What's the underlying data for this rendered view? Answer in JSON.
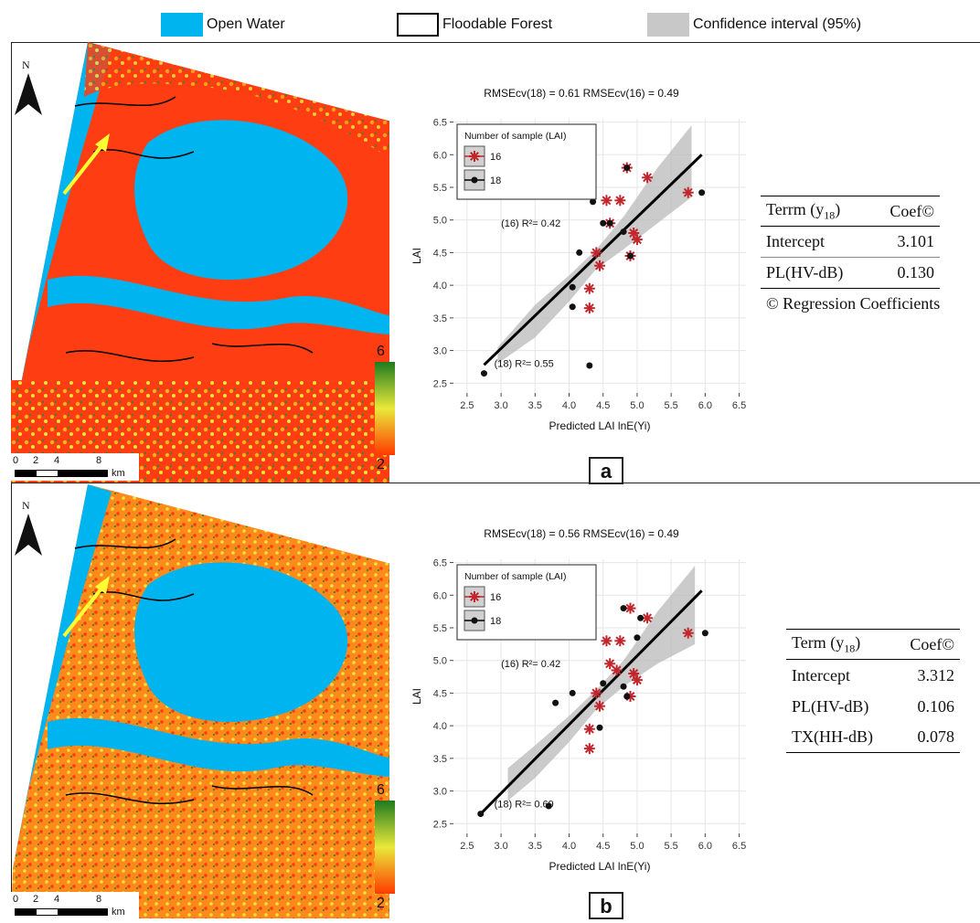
{
  "legend": {
    "open_water": {
      "label": "Open Water",
      "color": "#00b5ef"
    },
    "floodable_forest": {
      "label": "Floodable Forest"
    },
    "confidence": {
      "label": "Confidence  interval (95%)",
      "color": "#c8c8c8"
    }
  },
  "map_common": {
    "north_label": "N",
    "scale_labels": [
      "0",
      "2",
      "4",
      "8"
    ],
    "scale_unit": "km",
    "colorbar_max": "6",
    "colorbar_min": "2",
    "colorbar_colors": [
      "#1f7a1f",
      "#e9e93a",
      "#ff3a00"
    ]
  },
  "panels": [
    {
      "letter": "a",
      "table": {
        "headers": [
          "Terrm (y18)",
          "Coef©"
        ],
        "header_term": "Terrm (y",
        "header_sub": "18",
        "header_close": ")",
        "header_coef": "Coef©",
        "rows": [
          {
            "term": "Intercept",
            "coef": "3.101"
          },
          {
            "term": "PL(HV-dB)",
            "coef": "0.130"
          }
        ],
        "caption": "© Regression Coefficients"
      }
    },
    {
      "letter": "b",
      "table": {
        "headers": [
          "Term (y18)",
          "Coef©"
        ],
        "header_term": "Term (y",
        "header_sub": "18",
        "header_close": ")",
        "header_coef": "Coef©",
        "rows": [
          {
            "term": "Intercept",
            "coef": "3.312"
          },
          {
            "term": "PL(HV-dB)",
            "coef": "0.106"
          },
          {
            "term": "TX(HH-dB)",
            "coef": "0.078"
          }
        ],
        "caption": ""
      }
    }
  ],
  "chart_data": [
    {
      "type": "scatter",
      "title": "RMSEcv(18) = 0.61  RMSEcv(16) = 0.49",
      "xlabel": "Predicted LAI lnE(Yi)",
      "ylabel": "LAI",
      "xlim": [
        2.3,
        6.6
      ],
      "ylim": [
        2.35,
        6.55
      ],
      "xticks": [
        "2.5",
        "3.0",
        "3.5",
        "4.0",
        "4.5",
        "5.0",
        "5.5",
        "6.0",
        "6.5"
      ],
      "yticks": [
        "2.5",
        "3.0",
        "3.5",
        "4.0",
        "4.5",
        "5.0",
        "5.5",
        "6.0",
        "6.5"
      ],
      "grid": true,
      "legend_title": "Number of sample (LAI)",
      "legend_position": "top-left",
      "annotations": [
        "(16) R²= 0.42",
        "(18) R²= 0.55"
      ],
      "series": [
        {
          "name": "16",
          "marker": "asterisk",
          "color": "#c0272d",
          "points": [
            [
              4.85,
              5.8
            ],
            [
              5.15,
              5.65
            ],
            [
              4.55,
              5.3
            ],
            [
              4.75,
              5.3
            ],
            [
              5.75,
              5.42
            ],
            [
              4.6,
              4.95
            ],
            [
              4.95,
              4.8
            ],
            [
              4.4,
              4.5
            ],
            [
              4.45,
              4.3
            ],
            [
              4.3,
              3.95
            ],
            [
              4.3,
              3.65
            ],
            [
              4.9,
              4.45
            ],
            [
              5.0,
              4.7
            ]
          ]
        },
        {
          "name": "18",
          "marker": "dot",
          "color": "#111111",
          "points": [
            [
              2.75,
              2.65
            ],
            [
              4.3,
              2.77
            ],
            [
              4.05,
              3.67
            ],
            [
              4.05,
              3.97
            ],
            [
              4.15,
              4.5
            ],
            [
              4.9,
              4.45
            ],
            [
              4.5,
              4.95
            ],
            [
              4.6,
              4.95
            ],
            [
              4.8,
              4.82
            ],
            [
              4.35,
              5.28
            ],
            [
              4.85,
              5.8
            ],
            [
              5.95,
              5.42
            ]
          ]
        }
      ],
      "fit_line": [
        [
          2.75,
          2.78
        ],
        [
          5.95,
          6.0
        ]
      ],
      "ci_band": [
        [
          2.95,
          2.8,
          3.05
        ],
        [
          3.5,
          3.2,
          3.7
        ],
        [
          4.0,
          3.75,
          4.15
        ],
        [
          4.4,
          4.25,
          4.55
        ],
        [
          4.8,
          4.55,
          5.05
        ],
        [
          5.3,
          4.95,
          5.8
        ],
        [
          5.8,
          5.35,
          6.45
        ]
      ]
    },
    {
      "type": "scatter",
      "title": "RMSEcv(18) = 0.56  RMSEcv(16) = 0.49",
      "xlabel": "Predicted LAI lnE(Yi)",
      "ylabel": "LAI",
      "xlim": [
        2.3,
        6.6
      ],
      "ylim": [
        2.35,
        6.55
      ],
      "xticks": [
        "2.5",
        "3.0",
        "3.5",
        "4.0",
        "4.5",
        "5.0",
        "5.5",
        "6.0",
        "6.5"
      ],
      "yticks": [
        "2.5",
        "3.0",
        "3.5",
        "4.0",
        "4.5",
        "5.0",
        "5.5",
        "6.0",
        "6.5"
      ],
      "grid": true,
      "legend_title": "Number of sample (LAI)",
      "legend_position": "top-left",
      "annotations": [
        "(16) R²= 0.42",
        "(18) R²= 0.69"
      ],
      "series": [
        {
          "name": "16",
          "marker": "asterisk",
          "color": "#c0272d",
          "points": [
            [
              4.9,
              5.8
            ],
            [
              5.15,
              5.65
            ],
            [
              4.55,
              5.3
            ],
            [
              4.75,
              5.3
            ],
            [
              5.75,
              5.42
            ],
            [
              4.6,
              4.95
            ],
            [
              4.95,
              4.8
            ],
            [
              4.4,
              4.5
            ],
            [
              4.45,
              4.3
            ],
            [
              4.3,
              3.95
            ],
            [
              4.3,
              3.65
            ],
            [
              4.9,
              4.45
            ],
            [
              5.0,
              4.7
            ],
            [
              4.7,
              4.85
            ]
          ]
        },
        {
          "name": "18",
          "marker": "dot",
          "color": "#111111",
          "points": [
            [
              2.7,
              2.65
            ],
            [
              3.7,
              2.77
            ],
            [
              4.45,
              3.97
            ],
            [
              3.8,
              4.35
            ],
            [
              4.05,
              4.5
            ],
            [
              4.85,
              4.45
            ],
            [
              4.5,
              4.65
            ],
            [
              4.8,
              5.8
            ],
            [
              5.05,
              5.65
            ],
            [
              5.0,
              5.35
            ],
            [
              6.0,
              5.42
            ],
            [
              4.8,
              4.6
            ]
          ]
        }
      ],
      "fit_line": [
        [
          2.7,
          2.65
        ],
        [
          5.95,
          6.07
        ]
      ],
      "ci_band": [
        [
          3.1,
          2.85,
          3.35
        ],
        [
          3.5,
          3.2,
          3.7
        ],
        [
          4.0,
          3.75,
          4.15
        ],
        [
          4.4,
          4.25,
          4.55
        ],
        [
          4.8,
          4.6,
          5.0
        ],
        [
          5.3,
          4.95,
          5.75
        ],
        [
          5.85,
          5.25,
          6.45
        ]
      ]
    }
  ]
}
